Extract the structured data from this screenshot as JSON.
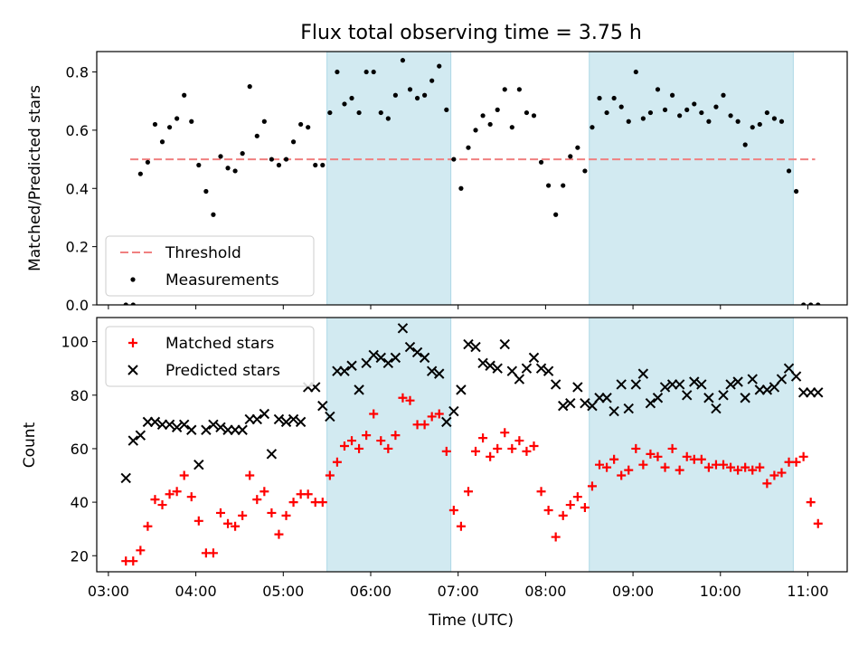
{
  "figure": {
    "title": "Flux total observing time = 3.75 h"
  },
  "colors": {
    "shade": "#add8e6",
    "threshold": "#f08080",
    "measurement": "#000000",
    "matched": "#ff0000",
    "predicted": "#000000"
  },
  "chart_data": [
    {
      "type": "scatter",
      "ylabel": "Matched/Predicted stars",
      "xlabel": "",
      "ylim": [
        0,
        0.87
      ],
      "yticks": [
        "0.0",
        "0.2",
        "0.4",
        "0.6",
        "0.8"
      ],
      "xlim": [
        "02:52",
        "11:27"
      ],
      "xticks": [
        "03:00",
        "04:00",
        "05:00",
        "06:00",
        "07:00",
        "08:00",
        "09:00",
        "10:00",
        "11:00"
      ],
      "shaded_intervals": [
        [
          "05:30",
          "06:55"
        ],
        [
          "08:30",
          "10:50"
        ]
      ],
      "legend_position": "lower left",
      "threshold": {
        "name": "Threshold",
        "y": 0.5,
        "x_range": [
          "03:15",
          "11:05"
        ]
      },
      "series": [
        {
          "name": "Measurements",
          "x": [
            "03:12",
            "03:17",
            "03:22",
            "03:27",
            "03:32",
            "03:37",
            "03:42",
            "03:47",
            "03:52",
            "03:57",
            "04:02",
            "04:07",
            "04:12",
            "04:17",
            "04:22",
            "04:27",
            "04:32",
            "04:37",
            "04:42",
            "04:47",
            "04:52",
            "04:57",
            "05:02",
            "05:07",
            "05:12",
            "05:17",
            "05:22",
            "05:27",
            "05:32",
            "05:37",
            "05:42",
            "05:47",
            "05:52",
            "05:57",
            "06:02",
            "06:07",
            "06:12",
            "06:17",
            "06:22",
            "06:27",
            "06:32",
            "06:37",
            "06:42",
            "06:47",
            "06:52",
            "06:57",
            "07:02",
            "07:07",
            "07:12",
            "07:17",
            "07:22",
            "07:27",
            "07:32",
            "07:37",
            "07:42",
            "07:47",
            "07:52",
            "07:57",
            "08:02",
            "08:07",
            "08:12",
            "08:17",
            "08:22",
            "08:27",
            "08:32",
            "08:37",
            "08:42",
            "08:47",
            "08:52",
            "08:57",
            "09:02",
            "09:07",
            "09:12",
            "09:17",
            "09:22",
            "09:27",
            "09:32",
            "09:37",
            "09:42",
            "09:47",
            "09:52",
            "09:57",
            "10:02",
            "10:07",
            "10:12",
            "10:17",
            "10:22",
            "10:27",
            "10:32",
            "10:37",
            "10:42",
            "10:47",
            "10:52",
            "10:57",
            "11:02",
            "11:07"
          ],
          "y": [
            0.0,
            0.0,
            0.45,
            0.49,
            0.62,
            0.56,
            0.61,
            0.64,
            0.72,
            0.63,
            0.48,
            0.39,
            0.31,
            0.51,
            0.47,
            0.46,
            0.52,
            0.75,
            0.58,
            0.63,
            0.5,
            0.48,
            0.5,
            0.56,
            0.62,
            0.61,
            0.48,
            0.48,
            0.66,
            0.8,
            0.69,
            0.71,
            0.66,
            0.8,
            0.8,
            0.66,
            0.64,
            0.72,
            0.84,
            0.74,
            0.71,
            0.72,
            0.77,
            0.82,
            0.67,
            0.5,
            0.4,
            0.54,
            0.6,
            0.65,
            0.62,
            0.67,
            0.74,
            0.61,
            0.74,
            0.66,
            0.65,
            0.49,
            0.41,
            0.31,
            0.41,
            0.51,
            0.54,
            0.46,
            0.61,
            0.71,
            0.66,
            0.71,
            0.68,
            0.63,
            0.8,
            0.64,
            0.66,
            0.74,
            0.67,
            0.72,
            0.65,
            0.67,
            0.69,
            0.66,
            0.63,
            0.68,
            0.72,
            0.65,
            0.63,
            0.55,
            0.61,
            0.62,
            0.66,
            0.64,
            0.63,
            0.46,
            0.39,
            0.0,
            0.0,
            0.0
          ]
        }
      ]
    },
    {
      "type": "scatter",
      "ylabel": "Count",
      "xlabel": "Time (UTC)",
      "ylim": [
        14,
        109
      ],
      "yticks": [
        "20",
        "40",
        "60",
        "80",
        "100"
      ],
      "xlim": [
        "02:52",
        "11:27"
      ],
      "xticks": [
        "03:00",
        "04:00",
        "05:00",
        "06:00",
        "07:00",
        "08:00",
        "09:00",
        "10:00",
        "11:00"
      ],
      "shaded_intervals": [
        [
          "05:30",
          "06:55"
        ],
        [
          "08:30",
          "10:50"
        ]
      ],
      "legend_position": "upper left",
      "series": [
        {
          "name": "Matched stars",
          "marker": "+",
          "x": [
            "03:12",
            "03:17",
            "03:22",
            "03:27",
            "03:32",
            "03:37",
            "03:42",
            "03:47",
            "03:52",
            "03:57",
            "04:02",
            "04:07",
            "04:12",
            "04:17",
            "04:22",
            "04:27",
            "04:32",
            "04:37",
            "04:42",
            "04:47",
            "04:52",
            "04:57",
            "05:02",
            "05:07",
            "05:12",
            "05:17",
            "05:22",
            "05:27",
            "05:32",
            "05:37",
            "05:42",
            "05:47",
            "05:52",
            "05:57",
            "06:02",
            "06:07",
            "06:12",
            "06:17",
            "06:22",
            "06:27",
            "06:32",
            "06:37",
            "06:42",
            "06:47",
            "06:52",
            "06:57",
            "07:02",
            "07:07",
            "07:12",
            "07:17",
            "07:22",
            "07:27",
            "07:32",
            "07:37",
            "07:42",
            "07:47",
            "07:52",
            "07:57",
            "08:02",
            "08:07",
            "08:12",
            "08:17",
            "08:22",
            "08:27",
            "08:32",
            "08:37",
            "08:42",
            "08:47",
            "08:52",
            "08:57",
            "09:02",
            "09:07",
            "09:12",
            "09:17",
            "09:22",
            "09:27",
            "09:32",
            "09:37",
            "09:42",
            "09:47",
            "09:52",
            "09:57",
            "10:02",
            "10:07",
            "10:12",
            "10:17",
            "10:22",
            "10:27",
            "10:32",
            "10:37",
            "10:42",
            "10:47",
            "10:52",
            "10:57",
            "11:02",
            "11:07"
          ],
          "y": [
            18,
            18,
            22,
            31,
            41,
            39,
            43,
            44,
            50,
            42,
            33,
            21,
            21,
            36,
            32,
            31,
            35,
            50,
            41,
            44,
            36,
            28,
            35,
            40,
            43,
            43,
            40,
            40,
            50,
            55,
            61,
            63,
            60,
            65,
            73,
            63,
            60,
            65,
            79,
            78,
            69,
            69,
            72,
            73,
            59,
            37,
            31,
            44,
            59,
            64,
            57,
            60,
            66,
            60,
            63,
            59,
            61,
            44,
            37,
            27,
            35,
            39,
            42,
            38,
            46,
            54,
            53,
            56,
            50,
            52,
            60,
            54,
            58,
            57,
            53,
            60,
            52,
            57,
            56,
            56,
            53,
            54,
            54,
            53,
            52,
            53,
            52,
            53,
            47,
            50,
            51,
            55,
            55,
            57,
            40,
            32
          ]
        },
        {
          "name": "Predicted stars",
          "marker": "x",
          "x": [
            "03:12",
            "03:17",
            "03:22",
            "03:27",
            "03:32",
            "03:37",
            "03:42",
            "03:47",
            "03:52",
            "03:57",
            "04:02",
            "04:07",
            "04:12",
            "04:17",
            "04:22",
            "04:27",
            "04:32",
            "04:37",
            "04:42",
            "04:47",
            "04:52",
            "04:57",
            "05:02",
            "05:07",
            "05:12",
            "05:17",
            "05:22",
            "05:27",
            "05:32",
            "05:37",
            "05:42",
            "05:47",
            "05:52",
            "05:57",
            "06:02",
            "06:07",
            "06:12",
            "06:17",
            "06:22",
            "06:27",
            "06:32",
            "06:37",
            "06:42",
            "06:47",
            "06:52",
            "06:57",
            "07:02",
            "07:07",
            "07:12",
            "07:17",
            "07:22",
            "07:27",
            "07:32",
            "07:37",
            "07:42",
            "07:47",
            "07:52",
            "07:57",
            "08:02",
            "08:07",
            "08:12",
            "08:17",
            "08:22",
            "08:27",
            "08:32",
            "08:37",
            "08:42",
            "08:47",
            "08:52",
            "08:57",
            "09:02",
            "09:07",
            "09:12",
            "09:17",
            "09:22",
            "09:27",
            "09:32",
            "09:37",
            "09:42",
            "09:47",
            "09:52",
            "09:57",
            "10:02",
            "10:07",
            "10:12",
            "10:17",
            "10:22",
            "10:27",
            "10:32",
            "10:37",
            "10:42",
            "10:47",
            "10:52",
            "10:57",
            "11:02",
            "11:07"
          ],
          "y": [
            49,
            63,
            65,
            70,
            70,
            69,
            69,
            68,
            69,
            67,
            54,
            67,
            69,
            68,
            67,
            67,
            67,
            71,
            71,
            73,
            58,
            71,
            70,
            71,
            70,
            83,
            83,
            76,
            72,
            89,
            89,
            91,
            82,
            92,
            95,
            94,
            92,
            94,
            105,
            98,
            96,
            94,
            89,
            88,
            70,
            74,
            82,
            99,
            98,
            92,
            91,
            90,
            99,
            89,
            86,
            90,
            94,
            90,
            89,
            84,
            76,
            77,
            83,
            77,
            76,
            79,
            79,
            74,
            84,
            75,
            84,
            88,
            77,
            79,
            83,
            84,
            84,
            80,
            85,
            84,
            79,
            75,
            80,
            84,
            85,
            79,
            86,
            82,
            82,
            83,
            86,
            90,
            87,
            81,
            81,
            81
          ]
        }
      ]
    }
  ]
}
